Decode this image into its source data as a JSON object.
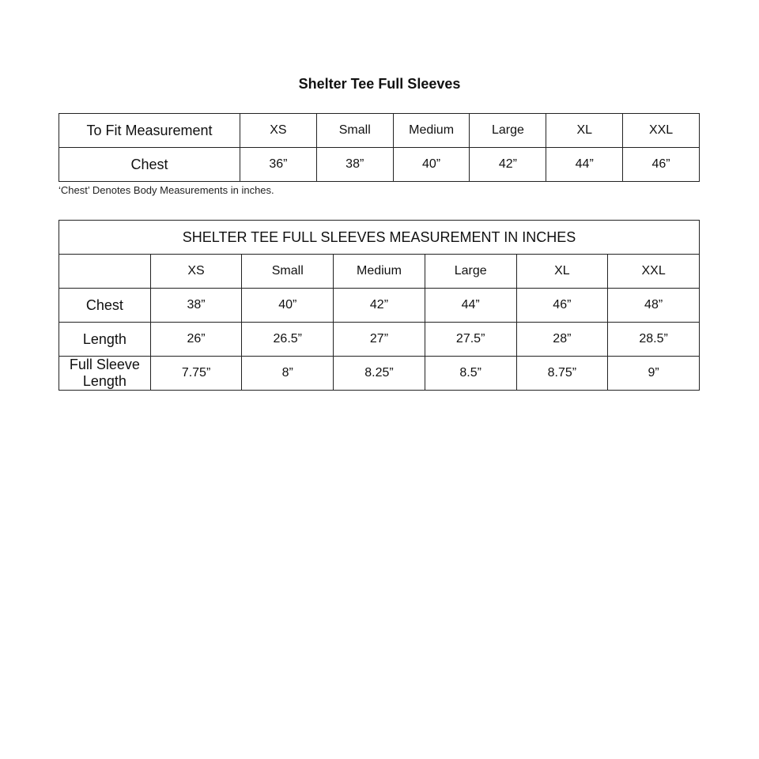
{
  "title": "Shelter Tee Full Sleeves",
  "body_table": {
    "header_label": "To Fit Measurement",
    "sizes": [
      "XS",
      "Small",
      "Medium",
      "Large",
      "XL",
      "XXL"
    ],
    "rows": [
      {
        "label": "Chest",
        "values": [
          "36”",
          "38”",
          "40”",
          "42”",
          "44”",
          "46”"
        ]
      }
    ]
  },
  "note": "‘Chest’ Denotes Body Measurements in inches.",
  "garment_table": {
    "caption": "SHELTER TEE FULL SLEEVES MEASUREMENT IN INCHES",
    "header_label": "",
    "sizes": [
      "XS",
      "Small",
      "Medium",
      "Large",
      "XL",
      "XXL"
    ],
    "rows": [
      {
        "label": "Chest",
        "values": [
          "38”",
          "40”",
          "42”",
          "44”",
          "46”",
          "48”"
        ]
      },
      {
        "label": "Length",
        "values": [
          "26”",
          "26.5”",
          "27”",
          "27.5”",
          "28”",
          "28.5”"
        ]
      },
      {
        "label": "Full Sleeve Length",
        "values": [
          "7.75”",
          "8”",
          "8.25”",
          "8.5”",
          "8.75”",
          "9”"
        ]
      }
    ]
  }
}
